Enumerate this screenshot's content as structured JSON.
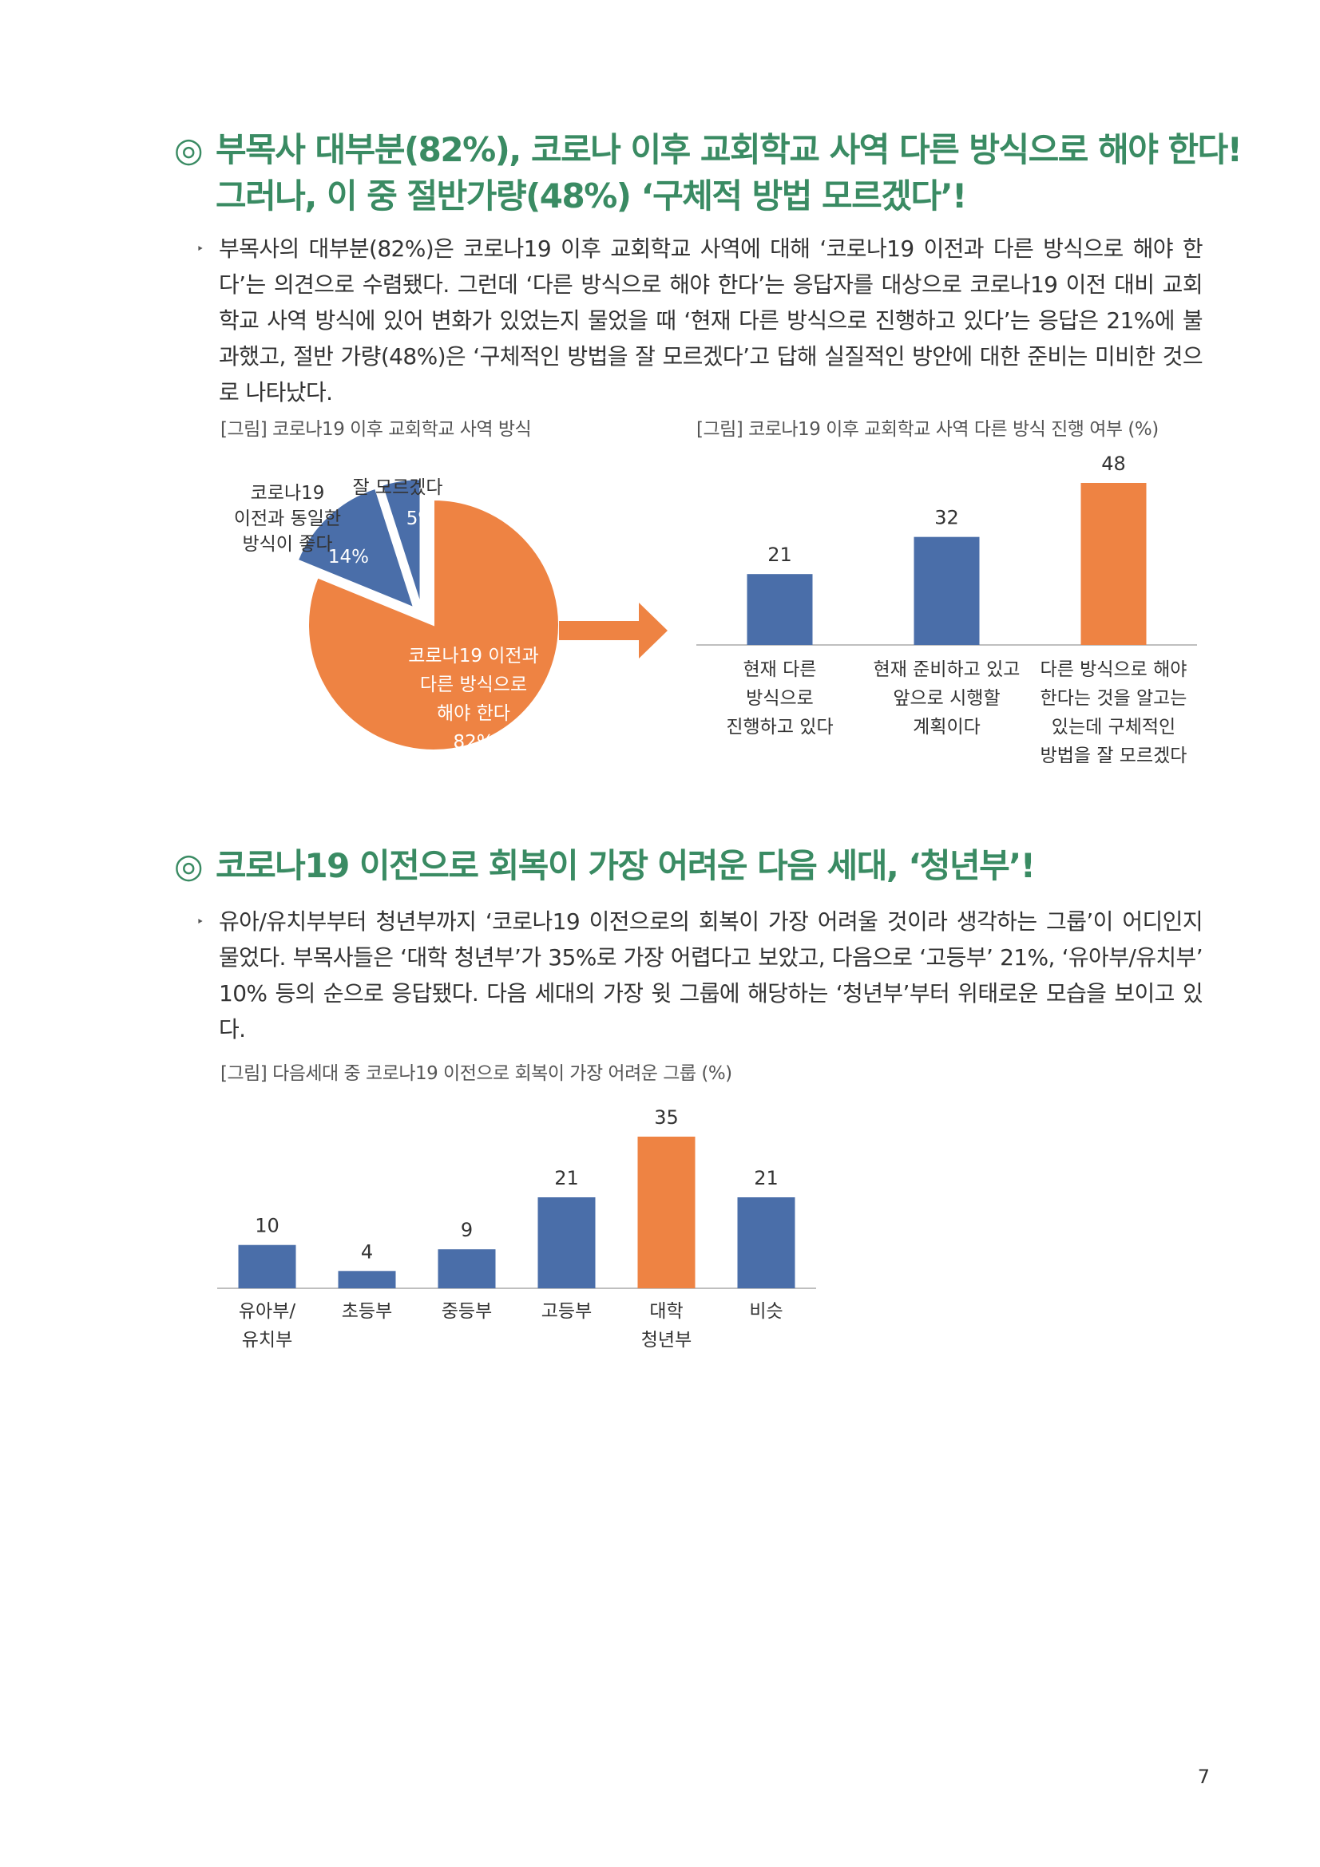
{
  "section1": {
    "mark": "◎",
    "title_line1": "부목사 대부분(82%), 코로나 이후 교회학교 사역 다른 방식으로 해야 한다!",
    "title_line2": "그러나, 이 중 절반가량(48%) ‘구체적 방법 모르겠다’!",
    "bullet": "‣",
    "paragraph": "부목사의 대부분(82%)은 코로나19 이후 교회학교 사역에 대해 ‘코로나19 이전과 다른 방식으로 해야 한다’는 의견으로 수렴됐다. 그런데 ‘다른 방식으로 해야 한다’는 응답자를 대상으로 코로나19 이전 대비 교회학교 사역 방식에 있어 변화가 있었는지 물었을 때 ‘현재 다른 방식으로 진행하고 있다’는 응답은 21%에 불과했고, 절반 가량(48%)은 ‘구체적인 방법을 잘 모르겠다’고 답해 실질적인 방안에 대한 준비는 미비한 것으로 나타났다."
  },
  "pie_caption": "[그림] 코로나19 이후 교회학교 사역 방식",
  "bar1_caption": "[그림] 코로나19 이후 교회학교 사역 다른 방식 진행 여부 (%)",
  "section2": {
    "mark": "◎",
    "title": "코로나19 이전으로 회복이 가장 어려운 다음 세대, ‘청년부’!",
    "bullet": "‣",
    "paragraph": "유아/유치부부터 청년부까지 ‘코로나19 이전으로의 회복이 가장 어려울 것이라 생각하는 그룹’이 어디인지 물었다. 부목사들은 ‘대학 청년부’가 35%로 가장 어렵다고 보았고, 다음으로 ‘고등부’ 21%, ‘유아부/유치부’ 10% 등의 순으로 응답됐다. 다음 세대의 가장 윗 그룹에 해당하는 ‘청년부’부터 위태로운 모습을 보이고 있다."
  },
  "bar2_caption": "[그림] 다음세대 중 코로나19 이전으로 회복이 가장 어려운 그룹 (%)",
  "page_number": "7",
  "colors": {
    "green": "#3a8b63",
    "blue": "#4a6ea9",
    "orange": "#ee8343",
    "gray": "#bfbfbf"
  },
  "chart_data": [
    {
      "type": "pie",
      "slices": [
        {
          "label_lines": [
            "코로나19 이전과",
            "다른 방식으로",
            "해야 한다"
          ],
          "value": 82,
          "value_label": "82%",
          "color": "#ee8343"
        },
        {
          "label_lines": [
            "코로나19",
            "이전과 동일한",
            "방식이 좋다"
          ],
          "value": 14,
          "value_label": "14%",
          "color": "#4a6ea9",
          "exploded": true
        },
        {
          "label_lines": [
            "잘 모르겠다"
          ],
          "value": 5,
          "value_label": "5%",
          "color": "#4a6ea9",
          "exploded": true
        }
      ]
    },
    {
      "type": "bar",
      "categories": [
        [
          "현재 다른",
          "방식으로",
          "진행하고 있다"
        ],
        [
          "현재 준비하고 있고",
          "앞으로 시행할",
          "계획이다"
        ],
        [
          "다른 방식으로 해야",
          "한다는 것을 알고는",
          "있는데 구체적인",
          "방법을 잘 모르겠다"
        ]
      ],
      "values": [
        21,
        32,
        48
      ],
      "colors": [
        "#4a6ea9",
        "#4a6ea9",
        "#ee8343"
      ],
      "ylim": [
        0,
        48
      ]
    },
    {
      "type": "bar",
      "categories": [
        [
          "유아부/",
          "유치부"
        ],
        [
          "초등부"
        ],
        [
          "중등부"
        ],
        [
          "고등부"
        ],
        [
          "대학",
          "청년부"
        ],
        [
          "비슷"
        ]
      ],
      "values": [
        10,
        4,
        9,
        21,
        35,
        21
      ],
      "colors": [
        "#4a6ea9",
        "#4a6ea9",
        "#4a6ea9",
        "#4a6ea9",
        "#ee8343",
        "#4a6ea9"
      ],
      "ylim": [
        0,
        35
      ]
    }
  ]
}
